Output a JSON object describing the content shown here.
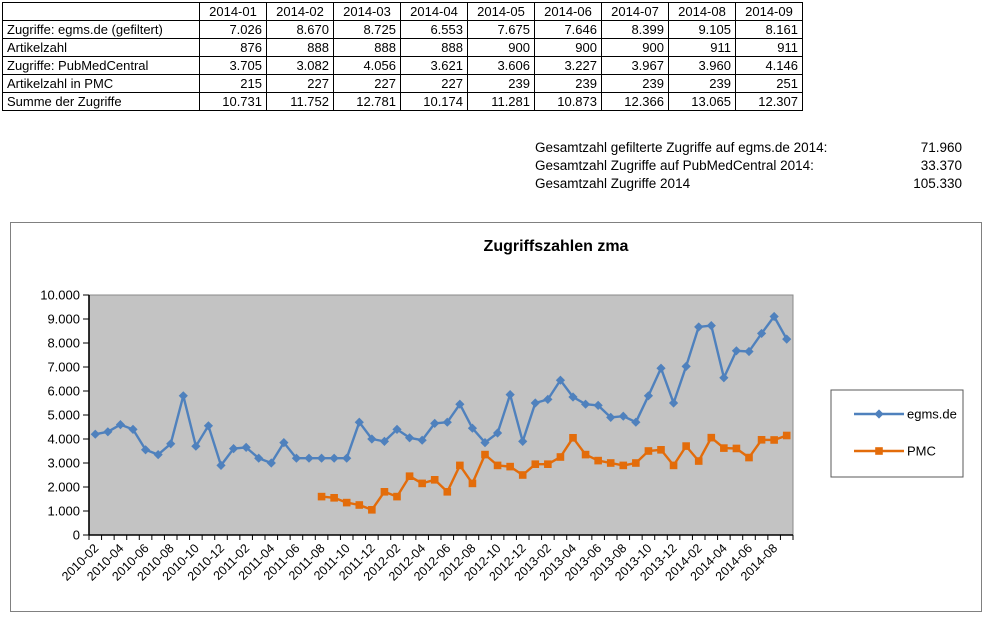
{
  "table": {
    "corner": "",
    "columns": [
      "2014-01",
      "2014-02",
      "2014-03",
      "2014-04",
      "2014-05",
      "2014-06",
      "2014-07",
      "2014-08",
      "2014-09"
    ],
    "rows": [
      {
        "label": "Zugriffe: egms.de (gefiltert)",
        "values": [
          "7.026",
          "8.670",
          "8.725",
          "6.553",
          "7.675",
          "7.646",
          "8.399",
          "9.105",
          "8.161"
        ]
      },
      {
        "label": "Artikelzahl",
        "values": [
          "876",
          "888",
          "888",
          "888",
          "900",
          "900",
          "900",
          "911",
          "911"
        ]
      },
      {
        "label": "Zugriffe: PubMedCentral",
        "values": [
          "3.705",
          "3.082",
          "4.056",
          "3.621",
          "3.606",
          "3.227",
          "3.967",
          "3.960",
          "4.146"
        ]
      },
      {
        "label": "Artikelzahl in PMC",
        "values": [
          "215",
          "227",
          "227",
          "227",
          "239",
          "239",
          "239",
          "239",
          "251"
        ]
      },
      {
        "label": "Summe der Zugriffe",
        "values": [
          "10.731",
          "11.752",
          "12.781",
          "10.174",
          "11.281",
          "10.873",
          "12.366",
          "13.065",
          "12.307"
        ]
      }
    ]
  },
  "summary": {
    "rows": [
      {
        "label": "Gesamtzahl gefilterte Zugriffe auf egms.de 2014:",
        "value": "71.960"
      },
      {
        "label": "Gesamtzahl Zugriffe auf PubMedCentral 2014:",
        "value": "33.370"
      },
      {
        "label": "Gesamtzahl Zugriffe 2014",
        "value": "105.330"
      }
    ]
  },
  "chart_data": {
    "type": "line",
    "title": "Zugriffszahlen zma",
    "xlabel": "",
    "ylabel": "",
    "ylim": [
      0,
      10000
    ],
    "ytick_labels": [
      "0",
      "1.000",
      "2.000",
      "3.000",
      "4.000",
      "5.000",
      "6.000",
      "7.000",
      "8.000",
      "9.000",
      "10.000"
    ],
    "grid": false,
    "plot_bg": "#c3c3c3",
    "legend_position": "right",
    "x_label_every": 2,
    "x": [
      "2010-02",
      "2010-03",
      "2010-04",
      "2010-05",
      "2010-06",
      "2010-07",
      "2010-08",
      "2010-09",
      "2010-10",
      "2010-11",
      "2010-12",
      "2011-01",
      "2011-02",
      "2011-03",
      "2011-04",
      "2011-05",
      "2011-06",
      "2011-07",
      "2011-08",
      "2011-09",
      "2011-10",
      "2011-11",
      "2011-12",
      "2012-01",
      "2012-02",
      "2012-03",
      "2012-04",
      "2012-05",
      "2012-06",
      "2012-07",
      "2012-08",
      "2012-09",
      "2012-10",
      "2012-11",
      "2012-12",
      "2013-01",
      "2013-02",
      "2013-03",
      "2013-04",
      "2013-05",
      "2013-06",
      "2013-07",
      "2013-08",
      "2013-09",
      "2013-10",
      "2013-11",
      "2013-12",
      "2014-01",
      "2014-02",
      "2014-03",
      "2014-04",
      "2014-05",
      "2014-06",
      "2014-07",
      "2014-08",
      "2014-09"
    ],
    "series": [
      {
        "name": "egms.de",
        "color": "#4f81bd",
        "marker": "diamond",
        "values": [
          4200,
          4300,
          4600,
          4400,
          3550,
          3350,
          3800,
          5800,
          3700,
          4550,
          2900,
          3600,
          3650,
          3200,
          3000,
          3850,
          3200,
          3200,
          3200,
          3200,
          3200,
          4700,
          4000,
          3900,
          4400,
          4050,
          3950,
          4650,
          4700,
          5450,
          4450,
          3850,
          4250,
          5850,
          3900,
          5500,
          5650,
          6450,
          5750,
          5450,
          5400,
          4900,
          4950,
          4700,
          5800,
          6950,
          5500,
          7026,
          8670,
          8725,
          6553,
          7675,
          7646,
          8399,
          9105,
          8161
        ]
      },
      {
        "name": "PMC",
        "color": "#e36c0a",
        "marker": "square",
        "values": [
          null,
          null,
          null,
          null,
          null,
          null,
          null,
          null,
          null,
          null,
          null,
          null,
          null,
          null,
          null,
          null,
          null,
          null,
          1600,
          1550,
          1350,
          1250,
          1050,
          1800,
          1600,
          2450,
          2150,
          2300,
          1800,
          2900,
          2150,
          3350,
          2900,
          2850,
          2500,
          2950,
          2950,
          3250,
          4050,
          3350,
          3100,
          3000,
          2900,
          3000,
          3500,
          3550,
          2900,
          3705,
          3082,
          4056,
          3621,
          3606,
          3227,
          3967,
          3960,
          4146
        ]
      }
    ]
  }
}
